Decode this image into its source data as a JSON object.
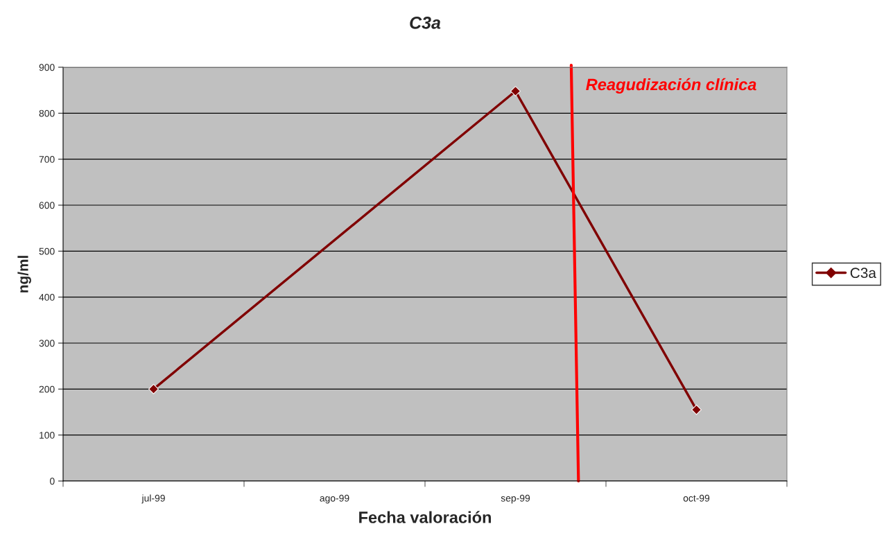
{
  "chart_data": {
    "type": "line",
    "title": "C3a",
    "xlabel": "Fecha valoración",
    "ylabel": "ng/ml",
    "categories": [
      "jul-99",
      "ago-99",
      "sep-99",
      "oct-99"
    ],
    "series": [
      {
        "name": "C3a",
        "color": "#800000",
        "values": [
          200,
          null,
          848,
          155
        ]
      }
    ],
    "ylim": [
      0,
      900
    ],
    "yticks": [
      0,
      100,
      200,
      300,
      400,
      500,
      600,
      700,
      800,
      900
    ],
    "grid": "y",
    "legend": "right",
    "marker": "diamond",
    "line_style": "solid",
    "annotations": [
      "Reagudización clínica"
    ]
  }
}
